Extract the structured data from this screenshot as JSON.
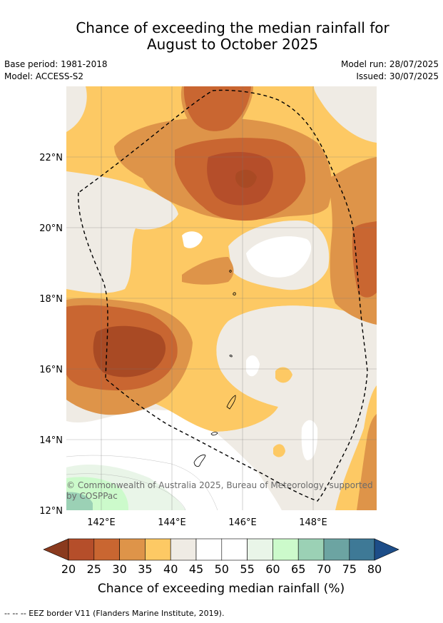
{
  "title": {
    "line1": "Chance of exceeding the median rainfall for",
    "line2": "August to October 2025"
  },
  "meta": {
    "base_period": "Base period: 1981-2018",
    "model": "Model: ACCESS-S2",
    "model_run": "Model run: 28/07/2025",
    "issued": "Issued: 30/07/2025"
  },
  "map": {
    "lat_labels": [
      "22°N",
      "20°N",
      "18°N",
      "16°N",
      "14°N",
      "12°N"
    ],
    "lon_labels": [
      "142°E",
      "144°E",
      "146°E",
      "148°E"
    ],
    "copyright": {
      "line1": "© Commonwealth of Australia 2025, Bureau of Meteorology, supported",
      "line2": "by COSPPac"
    },
    "colors": {
      "c20": "#a94a24",
      "c25": "#b54e2a",
      "c30": "#c96631",
      "c35": "#de9449",
      "c40": "#fdc964",
      "c45": "#efebe4",
      "c50": "#ffffff",
      "c55": "#ffffff",
      "c60": "#e9f5e8",
      "c65": "#ccfacb",
      "c70": "#9bd1b5",
      "c75": "#6ca4a2",
      "c80": "#3e7996",
      "over80": "#1d4d88"
    }
  },
  "colorbar": {
    "ticks": [
      "20",
      "25",
      "30",
      "35",
      "40",
      "45",
      "50",
      "55",
      "60",
      "65",
      "70",
      "75",
      "80"
    ],
    "label": "Chance of exceeding median rainfall (%)"
  },
  "footer": {
    "eez_note": "--  --  -- EEZ border V11 (Flanders Marine Institute, 2019)."
  }
}
